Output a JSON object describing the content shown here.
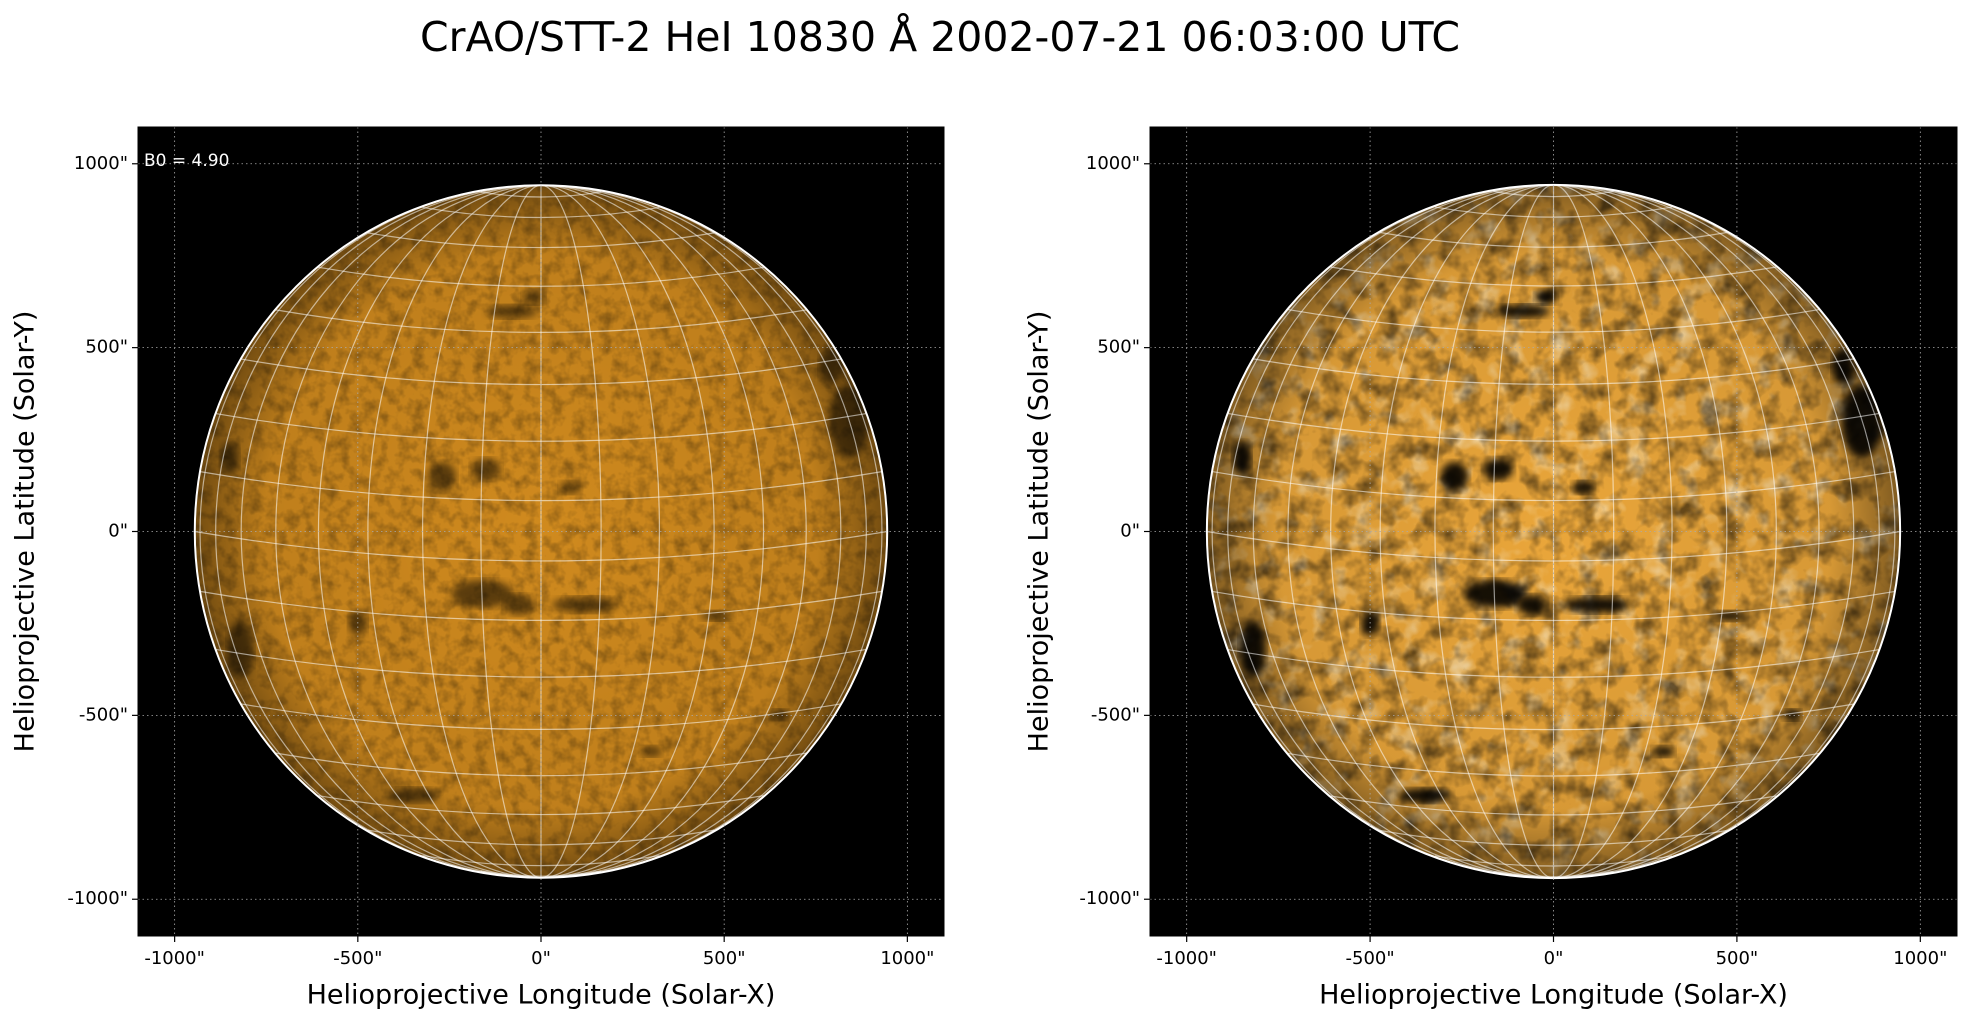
{
  "title": "CrAO/STT-2 HeI 10830 Å 2002-07-21 06:03:00 UTC",
  "chart_data": [
    {
      "type": "image",
      "annotation": "B0 = 4.90",
      "xlabel": "Helioprojective Longitude (Solar-X)",
      "ylabel": "Helioprojective Latitude (Solar-Y)",
      "xlim": [
        -1100,
        1100
      ],
      "ylim": [
        -1100,
        1100
      ],
      "xticks": [
        {
          "value": -1000,
          "label": "-1000\""
        },
        {
          "value": -500,
          "label": "-500\""
        },
        {
          "value": 0,
          "label": "0\""
        },
        {
          "value": 500,
          "label": "500\""
        },
        {
          "value": 1000,
          "label": "1000\""
        }
      ],
      "yticks": [
        {
          "value": -1000,
          "label": "-1000\""
        },
        {
          "value": -500,
          "label": "-500\""
        },
        {
          "value": 0,
          "label": "0\""
        },
        {
          "value": 500,
          "label": "500\""
        },
        {
          "value": 1000,
          "label": "1000\""
        }
      ],
      "grid": true,
      "solar_radius": 945,
      "color": "#d08a1e"
    },
    {
      "type": "image",
      "xlabel": "Helioprojective Longitude (Solar-X)",
      "ylabel": "Helioprojective Latitude (Solar-Y)",
      "xlim": [
        -1100,
        1100
      ],
      "ylim": [
        -1100,
        1100
      ],
      "xticks": [
        {
          "value": -1000,
          "label": "-1000\""
        },
        {
          "value": -500,
          "label": "-500\""
        },
        {
          "value": 0,
          "label": "0\""
        },
        {
          "value": 500,
          "label": "500\""
        },
        {
          "value": 1000,
          "label": "1000\""
        }
      ],
      "yticks": [
        {
          "value": -1000,
          "label": "-1000\""
        },
        {
          "value": -500,
          "label": "-500\""
        },
        {
          "value": 0,
          "label": "0\""
        },
        {
          "value": 500,
          "label": "500\""
        },
        {
          "value": 1000,
          "label": "1000\""
        }
      ],
      "grid": true,
      "solar_radius": 945,
      "color": "#eaa63a"
    }
  ]
}
